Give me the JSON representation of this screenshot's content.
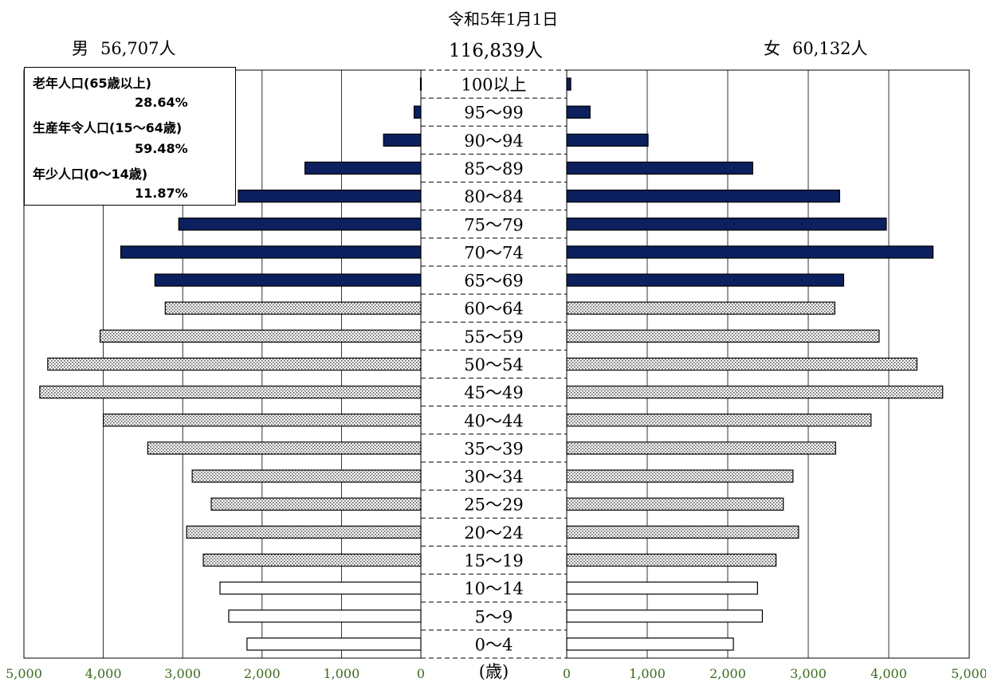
{
  "header": {
    "date": "令和5年1月1日",
    "total": "116,839人",
    "male_label": "男",
    "male_total": "56,707人",
    "female_label": "女",
    "female_total": "60,132人"
  },
  "legend": {
    "elderly_label": "老年人口(65歳以上)",
    "elderly_pct": "28.64%",
    "working_label": "生産年令人口(15～64歳)",
    "working_pct": "59.48%",
    "young_label": "年少人口(0～14歳)",
    "young_pct": "11.87%"
  },
  "chart_data": {
    "type": "bar",
    "orientation": "horizontal-population-pyramid",
    "categories": [
      "100以上",
      "95～99",
      "90～94",
      "85～89",
      "80～84",
      "75～79",
      "70～74",
      "65～69",
      "60～64",
      "55～59",
      "50～54",
      "45～49",
      "40～44",
      "35～39",
      "30～34",
      "25～29",
      "20～24",
      "15～19",
      "10～14",
      "5～9",
      "0～4"
    ],
    "series": [
      {
        "name": "男",
        "values": [
          5,
          85,
          470,
          1460,
          2300,
          3050,
          3780,
          3350,
          3220,
          4040,
          4700,
          4800,
          4000,
          3440,
          2880,
          2640,
          2950,
          2740,
          2530,
          2420,
          2190
        ]
      },
      {
        "name": "女",
        "values": [
          50,
          290,
          1010,
          2310,
          3390,
          3970,
          4550,
          3440,
          3330,
          3880,
          4350,
          4670,
          3780,
          3340,
          2810,
          2690,
          2880,
          2600,
          2370,
          2430,
          2070
        ]
      }
    ],
    "group_fill": [
      "old",
      "old",
      "old",
      "old",
      "old",
      "old",
      "old",
      "old",
      "work",
      "work",
      "work",
      "work",
      "work",
      "work",
      "work",
      "work",
      "work",
      "work",
      "young",
      "young",
      "young"
    ],
    "fill_colors": {
      "old": "#0c1f5e",
      "young": "#ffffff"
    },
    "xlim": [
      0,
      5000
    ],
    "left_ticks": [
      "5,000",
      "4,000",
      "3,000",
      "2,000",
      "1,000",
      "0"
    ],
    "right_ticks": [
      "0",
      "1,000",
      "2,000",
      "3,000",
      "4,000",
      "5,000"
    ],
    "tick_color": "#3a6b1e",
    "center_unit": "(歳)",
    "grid": true
  }
}
